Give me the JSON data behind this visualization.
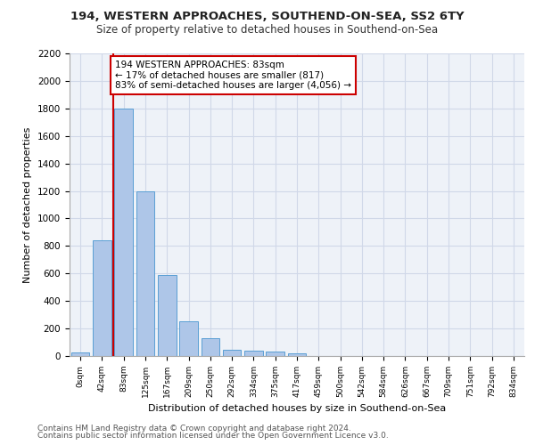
{
  "title1": "194, WESTERN APPROACHES, SOUTHEND-ON-SEA, SS2 6TY",
  "title2": "Size of property relative to detached houses in Southend-on-Sea",
  "xlabel": "Distribution of detached houses by size in Southend-on-Sea",
  "ylabel": "Number of detached properties",
  "bar_values": [
    25,
    840,
    1800,
    1200,
    590,
    250,
    130,
    45,
    40,
    30,
    18,
    0,
    0,
    0,
    0,
    0,
    0,
    0,
    0,
    0,
    0
  ],
  "bar_labels": [
    "0sqm",
    "42sqm",
    "83sqm",
    "125sqm",
    "167sqm",
    "209sqm",
    "250sqm",
    "292sqm",
    "334sqm",
    "375sqm",
    "417sqm",
    "459sqm",
    "500sqm",
    "542sqm",
    "584sqm",
    "626sqm",
    "667sqm",
    "709sqm",
    "751sqm",
    "792sqm",
    "834sqm"
  ],
  "bar_color": "#aec6e8",
  "bar_edge_color": "#5a9fd4",
  "grid_color": "#d0d8e8",
  "background_color": "#eef2f8",
  "vline_color": "#cc0000",
  "annotation_text": "194 WESTERN APPROACHES: 83sqm\n← 17% of detached houses are smaller (817)\n83% of semi-detached houses are larger (4,056) →",
  "annotation_box_color": "#ffffff",
  "annotation_box_edge": "#cc0000",
  "ylim": [
    0,
    2200
  ],
  "yticks": [
    0,
    200,
    400,
    600,
    800,
    1000,
    1200,
    1400,
    1600,
    1800,
    2000,
    2200
  ],
  "footnote1": "Contains HM Land Registry data © Crown copyright and database right 2024.",
  "footnote2": "Contains public sector information licensed under the Open Government Licence v3.0."
}
